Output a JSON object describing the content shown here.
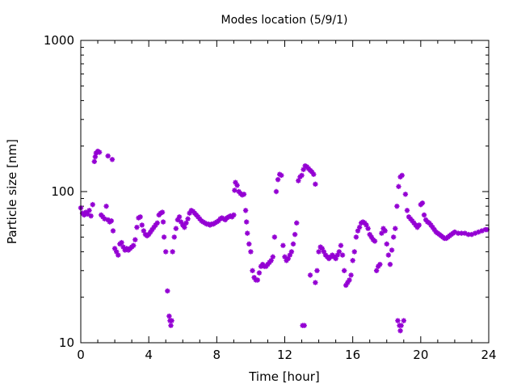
{
  "chart_data": {
    "type": "scatter",
    "title": "Modes location (5/9/1)",
    "xlabel": "Time [hour]",
    "ylabel": "Particle size [nm]",
    "xlim": [
      0,
      24
    ],
    "ylim": [
      10,
      1000
    ],
    "y_scale": "log",
    "x_ticks": [
      0,
      4,
      8,
      12,
      16,
      20,
      24
    ],
    "x_tick_labels": [
      "0",
      "4",
      "8",
      "12",
      "16",
      "20",
      "24"
    ],
    "y_ticks": [
      10,
      100,
      1000
    ],
    "y_tick_labels": [
      "10",
      "100",
      "1000"
    ],
    "grid": false,
    "legend": "none",
    "marker_color": "#9400d3",
    "series": [
      {
        "points": [
          [
            0.0,
            78
          ],
          [
            0.1,
            72
          ],
          [
            0.2,
            70
          ],
          [
            0.3,
            73
          ],
          [
            0.4,
            71
          ],
          [
            0.5,
            75
          ],
          [
            0.6,
            69
          ],
          [
            0.7,
            82
          ],
          [
            0.8,
            158
          ],
          [
            0.85,
            170
          ],
          [
            0.9,
            180
          ],
          [
            1.0,
            185
          ],
          [
            1.1,
            182
          ],
          [
            1.2,
            70
          ],
          [
            1.3,
            68
          ],
          [
            1.4,
            66
          ],
          [
            1.5,
            80
          ],
          [
            1.6,
            65
          ],
          [
            1.7,
            63
          ],
          [
            1.8,
            64
          ],
          [
            1.9,
            55
          ],
          [
            1.6,
            172
          ],
          [
            1.85,
            163
          ],
          [
            2.0,
            42
          ],
          [
            2.1,
            40
          ],
          [
            2.2,
            38
          ],
          [
            2.3,
            45
          ],
          [
            2.4,
            46
          ],
          [
            2.5,
            43
          ],
          [
            2.6,
            41
          ],
          [
            2.7,
            42
          ],
          [
            2.8,
            41
          ],
          [
            2.9,
            42
          ],
          [
            3.0,
            43
          ],
          [
            3.1,
            44
          ],
          [
            3.2,
            48
          ],
          [
            3.3,
            58
          ],
          [
            3.4,
            67
          ],
          [
            3.5,
            68
          ],
          [
            3.6,
            60
          ],
          [
            3.7,
            55
          ],
          [
            3.8,
            52
          ],
          [
            3.9,
            51
          ],
          [
            4.0,
            52
          ],
          [
            4.1,
            54
          ],
          [
            4.2,
            56
          ],
          [
            4.3,
            58
          ],
          [
            4.4,
            60
          ],
          [
            4.5,
            62
          ],
          [
            4.6,
            70
          ],
          [
            4.7,
            72
          ],
          [
            4.8,
            73
          ],
          [
            4.85,
            63
          ],
          [
            4.9,
            50
          ],
          [
            5.0,
            40
          ],
          [
            5.1,
            22
          ],
          [
            5.2,
            15
          ],
          [
            5.25,
            14
          ],
          [
            5.3,
            13
          ],
          [
            5.35,
            14
          ],
          [
            5.4,
            40
          ],
          [
            5.5,
            50
          ],
          [
            5.6,
            57
          ],
          [
            5.7,
            65
          ],
          [
            5.8,
            68
          ],
          [
            5.9,
            63
          ],
          [
            6.0,
            60
          ],
          [
            6.1,
            58
          ],
          [
            6.2,
            62
          ],
          [
            6.3,
            66
          ],
          [
            6.4,
            72
          ],
          [
            6.5,
            75
          ],
          [
            6.6,
            74
          ],
          [
            6.7,
            72
          ],
          [
            6.8,
            70
          ],
          [
            6.9,
            68
          ],
          [
            7.0,
            66
          ],
          [
            7.1,
            64
          ],
          [
            7.2,
            63
          ],
          [
            7.3,
            62
          ],
          [
            7.4,
            61
          ],
          [
            7.5,
            61
          ],
          [
            7.6,
            60
          ],
          [
            7.7,
            61
          ],
          [
            7.8,
            61
          ],
          [
            7.9,
            62
          ],
          [
            8.0,
            63
          ],
          [
            8.1,
            64
          ],
          [
            8.2,
            66
          ],
          [
            8.3,
            67
          ],
          [
            8.4,
            66
          ],
          [
            8.5,
            65
          ],
          [
            8.6,
            67
          ],
          [
            8.7,
            68
          ],
          [
            8.8,
            69
          ],
          [
            8.9,
            68
          ],
          [
            9.0,
            70
          ],
          [
            9.05,
            102
          ],
          [
            9.1,
            115
          ],
          [
            9.2,
            110
          ],
          [
            9.3,
            100
          ],
          [
            9.4,
            97
          ],
          [
            9.5,
            95
          ],
          [
            9.6,
            96
          ],
          [
            9.7,
            75
          ],
          [
            9.75,
            63
          ],
          [
            9.8,
            53
          ],
          [
            9.9,
            45
          ],
          [
            10.0,
            40
          ],
          [
            10.1,
            30
          ],
          [
            10.2,
            27
          ],
          [
            10.3,
            26
          ],
          [
            10.4,
            26
          ],
          [
            10.5,
            29
          ],
          [
            10.6,
            32
          ],
          [
            10.7,
            33
          ],
          [
            10.8,
            32
          ],
          [
            10.9,
            32
          ],
          [
            11.0,
            33
          ],
          [
            11.1,
            34
          ],
          [
            11.2,
            35
          ],
          [
            11.3,
            37
          ],
          [
            11.4,
            50
          ],
          [
            11.5,
            100
          ],
          [
            11.6,
            120
          ],
          [
            11.7,
            130
          ],
          [
            11.8,
            128
          ],
          [
            11.9,
            44
          ],
          [
            12.0,
            37
          ],
          [
            12.1,
            35
          ],
          [
            12.2,
            36
          ],
          [
            12.3,
            38
          ],
          [
            12.4,
            40
          ],
          [
            12.5,
            45
          ],
          [
            12.6,
            52
          ],
          [
            12.7,
            62
          ],
          [
            12.8,
            118
          ],
          [
            12.9,
            125
          ],
          [
            13.0,
            128
          ],
          [
            13.1,
            140
          ],
          [
            13.2,
            148
          ],
          [
            13.3,
            146
          ],
          [
            13.4,
            142
          ],
          [
            13.5,
            138
          ],
          [
            13.6,
            135
          ],
          [
            13.7,
            130
          ],
          [
            13.8,
            112
          ],
          [
            13.05,
            13
          ],
          [
            13.15,
            13
          ],
          [
            13.5,
            28
          ],
          [
            13.8,
            25
          ],
          [
            13.9,
            30
          ],
          [
            14.0,
            40
          ],
          [
            14.1,
            43
          ],
          [
            14.2,
            42
          ],
          [
            14.3,
            40
          ],
          [
            14.4,
            38
          ],
          [
            14.5,
            37
          ],
          [
            14.6,
            36
          ],
          [
            14.7,
            37
          ],
          [
            14.8,
            38
          ],
          [
            14.9,
            37
          ],
          [
            15.0,
            36
          ],
          [
            15.1,
            38
          ],
          [
            15.2,
            40
          ],
          [
            15.3,
            44
          ],
          [
            15.4,
            38
          ],
          [
            15.5,
            30
          ],
          [
            15.6,
            24
          ],
          [
            15.7,
            25
          ],
          [
            15.8,
            26
          ],
          [
            15.9,
            28
          ],
          [
            16.0,
            35
          ],
          [
            16.1,
            40
          ],
          [
            16.2,
            50
          ],
          [
            16.3,
            55
          ],
          [
            16.4,
            58
          ],
          [
            16.5,
            62
          ],
          [
            16.6,
            63
          ],
          [
            16.7,
            62
          ],
          [
            16.8,
            60
          ],
          [
            16.9,
            57
          ],
          [
            17.0,
            52
          ],
          [
            17.1,
            50
          ],
          [
            17.2,
            48
          ],
          [
            17.3,
            47
          ],
          [
            17.4,
            30
          ],
          [
            17.5,
            32
          ],
          [
            17.6,
            33
          ],
          [
            17.7,
            53
          ],
          [
            17.8,
            57
          ],
          [
            17.9,
            55
          ],
          [
            18.0,
            45
          ],
          [
            18.1,
            38
          ],
          [
            18.2,
            33
          ],
          [
            18.3,
            41
          ],
          [
            18.4,
            50
          ],
          [
            18.5,
            57
          ],
          [
            18.6,
            80
          ],
          [
            18.7,
            108
          ],
          [
            18.8,
            125
          ],
          [
            18.9,
            128
          ],
          [
            18.65,
            14
          ],
          [
            18.75,
            13
          ],
          [
            18.8,
            12
          ],
          [
            18.85,
            13
          ],
          [
            19.0,
            14
          ],
          [
            19.1,
            96
          ],
          [
            19.2,
            75
          ],
          [
            19.3,
            68
          ],
          [
            19.4,
            66
          ],
          [
            19.5,
            64
          ],
          [
            19.6,
            62
          ],
          [
            19.7,
            60
          ],
          [
            19.8,
            58
          ],
          [
            19.9,
            60
          ],
          [
            20.0,
            82
          ],
          [
            20.1,
            84
          ],
          [
            20.2,
            70
          ],
          [
            20.3,
            65
          ],
          [
            20.4,
            63
          ],
          [
            20.5,
            62
          ],
          [
            20.6,
            60
          ],
          [
            20.7,
            58
          ],
          [
            20.8,
            56
          ],
          [
            20.9,
            54
          ],
          [
            21.0,
            53
          ],
          [
            21.1,
            52
          ],
          [
            21.2,
            51
          ],
          [
            21.3,
            50
          ],
          [
            21.4,
            49
          ],
          [
            21.5,
            49
          ],
          [
            21.6,
            50
          ],
          [
            21.7,
            51
          ],
          [
            21.8,
            52
          ],
          [
            21.9,
            53
          ],
          [
            22.0,
            54
          ],
          [
            22.2,
            53
          ],
          [
            22.4,
            53
          ],
          [
            22.6,
            53
          ],
          [
            22.8,
            52
          ],
          [
            23.0,
            52
          ],
          [
            23.2,
            53
          ],
          [
            23.4,
            54
          ],
          [
            23.6,
            55
          ],
          [
            23.8,
            56
          ],
          [
            23.9,
            56
          ]
        ]
      }
    ]
  }
}
